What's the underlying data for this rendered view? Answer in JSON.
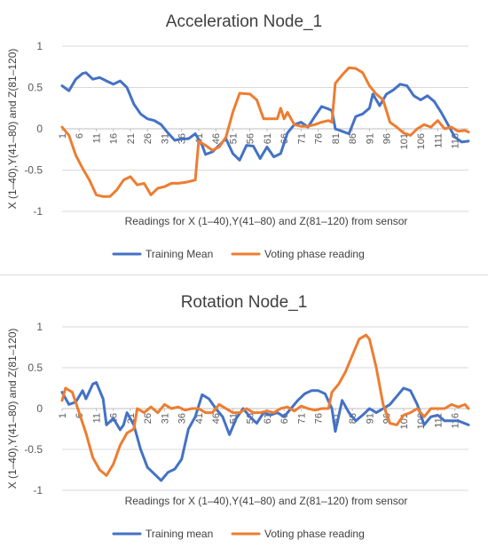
{
  "chart_data": [
    {
      "type": "line",
      "title": "Acceleration Node_1",
      "xlabel": "Readings for X (1–40),Y(41–80) and Z(81–120) from sensor",
      "ylabel": "X (1–40),Y(41–80) and Z(81–120)",
      "ylim": [
        -1,
        1
      ],
      "yticks": [
        1,
        0.5,
        0,
        -0.5,
        -1
      ],
      "xlim": [
        1,
        120
      ],
      "xticks": [
        1,
        6,
        11,
        16,
        21,
        26,
        31,
        36,
        41,
        46,
        51,
        56,
        61,
        66,
        71,
        76,
        81,
        86,
        91,
        96,
        101,
        106,
        111,
        116
      ],
      "grid": true,
      "legend": "bottom",
      "series": [
        {
          "name": "Training Mean",
          "color": "#4472C4",
          "points": [
            [
              1,
              0.52
            ],
            [
              3,
              0.46
            ],
            [
              5,
              0.6
            ],
            [
              7,
              0.67
            ],
            [
              8,
              0.68
            ],
            [
              10,
              0.6
            ],
            [
              12,
              0.62
            ],
            [
              14,
              0.58
            ],
            [
              16,
              0.54
            ],
            [
              18,
              0.58
            ],
            [
              20,
              0.5
            ],
            [
              22,
              0.3
            ],
            [
              24,
              0.18
            ],
            [
              26,
              0.12
            ],
            [
              28,
              0.1
            ],
            [
              30,
              0.05
            ],
            [
              32,
              -0.05
            ],
            [
              34,
              -0.14
            ],
            [
              36,
              -0.12
            ],
            [
              38,
              -0.12
            ],
            [
              40,
              -0.06
            ],
            [
              42,
              -0.2
            ],
            [
              43,
              -0.31
            ],
            [
              45,
              -0.28
            ],
            [
              47,
              -0.2
            ],
            [
              49,
              -0.12
            ],
            [
              51,
              -0.3
            ],
            [
              53,
              -0.38
            ],
            [
              55,
              -0.2
            ],
            [
              57,
              -0.21
            ],
            [
              59,
              -0.36
            ],
            [
              61,
              -0.22
            ],
            [
              63,
              -0.34
            ],
            [
              65,
              -0.3
            ],
            [
              67,
              -0.05
            ],
            [
              69,
              0.05
            ],
            [
              71,
              0.08
            ],
            [
              73,
              0.02
            ],
            [
              75,
              0.15
            ],
            [
              77,
              0.27
            ],
            [
              79,
              0.24
            ],
            [
              80,
              0.22
            ],
            [
              81,
              0.0
            ],
            [
              83,
              -0.03
            ],
            [
              85,
              -0.06
            ],
            [
              87,
              0.15
            ],
            [
              89,
              0.18
            ],
            [
              91,
              0.25
            ],
            [
              92,
              0.42
            ],
            [
              94,
              0.28
            ],
            [
              96,
              0.42
            ],
            [
              98,
              0.47
            ],
            [
              100,
              0.54
            ],
            [
              102,
              0.52
            ],
            [
              104,
              0.4
            ],
            [
              106,
              0.35
            ],
            [
              108,
              0.4
            ],
            [
              110,
              0.33
            ],
            [
              112,
              0.2
            ],
            [
              114,
              0.05
            ],
            [
              116,
              -0.1
            ],
            [
              118,
              -0.16
            ],
            [
              120,
              -0.15
            ]
          ]
        },
        {
          "name": "Voting phase reading",
          "color": "#ED7D31",
          "points": [
            [
              1,
              0.02
            ],
            [
              3,
              -0.08
            ],
            [
              5,
              -0.32
            ],
            [
              7,
              -0.48
            ],
            [
              9,
              -0.62
            ],
            [
              11,
              -0.8
            ],
            [
              13,
              -0.82
            ],
            [
              15,
              -0.82
            ],
            [
              17,
              -0.74
            ],
            [
              19,
              -0.62
            ],
            [
              21,
              -0.58
            ],
            [
              23,
              -0.68
            ],
            [
              25,
              -0.66
            ],
            [
              27,
              -0.8
            ],
            [
              29,
              -0.72
            ],
            [
              31,
              -0.7
            ],
            [
              33,
              -0.66
            ],
            [
              35,
              -0.66
            ],
            [
              37,
              -0.65
            ],
            [
              40,
              -0.62
            ],
            [
              41,
              -0.15
            ],
            [
              43,
              -0.2
            ],
            [
              45,
              -0.26
            ],
            [
              47,
              -0.22
            ],
            [
              49,
              -0.1
            ],
            [
              51,
              0.2
            ],
            [
              53,
              0.43
            ],
            [
              56,
              0.42
            ],
            [
              58,
              0.35
            ],
            [
              60,
              0.12
            ],
            [
              62,
              0.12
            ],
            [
              64,
              0.12
            ],
            [
              65,
              0.25
            ],
            [
              66,
              0.12
            ],
            [
              67,
              0.2
            ],
            [
              69,
              0.05
            ],
            [
              71,
              0.03
            ],
            [
              73,
              0.03
            ],
            [
              75,
              0.05
            ],
            [
              77,
              0.08
            ],
            [
              79,
              0.1
            ],
            [
              80,
              0.08
            ],
            [
              81,
              0.55
            ],
            [
              83,
              0.65
            ],
            [
              85,
              0.74
            ],
            [
              87,
              0.73
            ],
            [
              89,
              0.68
            ],
            [
              91,
              0.52
            ],
            [
              93,
              0.42
            ],
            [
              95,
              0.35
            ],
            [
              97,
              0.08
            ],
            [
              99,
              0.02
            ],
            [
              101,
              -0.05
            ],
            [
              103,
              -0.08
            ],
            [
              105,
              0.0
            ],
            [
              107,
              0.05
            ],
            [
              109,
              0.02
            ],
            [
              111,
              0.1
            ],
            [
              113,
              0.0
            ],
            [
              115,
              0.02
            ],
            [
              117,
              -0.03
            ],
            [
              119,
              -0.02
            ],
            [
              120,
              -0.04
            ]
          ]
        }
      ]
    },
    {
      "type": "line",
      "title": "Rotation Node_1",
      "xlabel": "Readings for X (1–40),Y(41–80) and Z(81–120) from sensor",
      "ylabel": "X (1–40),Y(41–80) and Z(81–120)",
      "ylim": [
        -1,
        1
      ],
      "yticks": [
        1,
        0.5,
        0,
        -0.5,
        -1
      ],
      "xlim": [
        1,
        120
      ],
      "xticks": [
        1,
        6,
        11,
        16,
        21,
        26,
        31,
        36,
        41,
        46,
        51,
        56,
        61,
        66,
        71,
        76,
        81,
        86,
        91,
        96,
        101,
        106,
        111,
        116
      ],
      "grid": true,
      "legend": "bottom",
      "series": [
        {
          "name": "Training mean",
          "color": "#4472C4",
          "points": [
            [
              1,
              0.2
            ],
            [
              3,
              0.05
            ],
            [
              5,
              0.08
            ],
            [
              7,
              0.22
            ],
            [
              8,
              0.12
            ],
            [
              10,
              0.3
            ],
            [
              11,
              0.32
            ],
            [
              13,
              0.12
            ],
            [
              14,
              -0.2
            ],
            [
              16,
              -0.12
            ],
            [
              18,
              -0.26
            ],
            [
              19,
              -0.2
            ],
            [
              20,
              -0.05
            ],
            [
              22,
              -0.2
            ],
            [
              24,
              -0.5
            ],
            [
              26,
              -0.72
            ],
            [
              28,
              -0.8
            ],
            [
              30,
              -0.88
            ],
            [
              32,
              -0.78
            ],
            [
              34,
              -0.74
            ],
            [
              36,
              -0.62
            ],
            [
              38,
              -0.25
            ],
            [
              40,
              -0.1
            ],
            [
              42,
              0.17
            ],
            [
              44,
              0.12
            ],
            [
              46,
              0.0
            ],
            [
              48,
              -0.1
            ],
            [
              50,
              -0.32
            ],
            [
              52,
              -0.12
            ],
            [
              54,
              0.0
            ],
            [
              56,
              -0.1
            ],
            [
              58,
              -0.18
            ],
            [
              60,
              -0.05
            ],
            [
              62,
              -0.08
            ],
            [
              64,
              -0.05
            ],
            [
              66,
              -0.1
            ],
            [
              68,
              0.0
            ],
            [
              70,
              0.1
            ],
            [
              72,
              0.18
            ],
            [
              74,
              0.22
            ],
            [
              76,
              0.22
            ],
            [
              78,
              0.18
            ],
            [
              80,
              0.0
            ],
            [
              81,
              -0.28
            ],
            [
              83,
              0.1
            ],
            [
              85,
              -0.05
            ],
            [
              87,
              -0.15
            ],
            [
              89,
              -0.08
            ],
            [
              91,
              0.0
            ],
            [
              93,
              -0.05
            ],
            [
              95,
              0.0
            ],
            [
              97,
              0.05
            ],
            [
              99,
              0.15
            ],
            [
              101,
              0.25
            ],
            [
              103,
              0.22
            ],
            [
              105,
              0.05
            ],
            [
              107,
              -0.2
            ],
            [
              109,
              -0.1
            ],
            [
              111,
              -0.08
            ],
            [
              113,
              -0.15
            ],
            [
              115,
              -0.15
            ],
            [
              117,
              -0.15
            ],
            [
              120,
              -0.2
            ]
          ]
        },
        {
          "name": "Voting phase reading",
          "color": "#ED7D31",
          "points": [
            [
              1,
              0.1
            ],
            [
              2,
              0.25
            ],
            [
              4,
              0.2
            ],
            [
              6,
              -0.05
            ],
            [
              8,
              -0.3
            ],
            [
              10,
              -0.6
            ],
            [
              12,
              -0.75
            ],
            [
              14,
              -0.82
            ],
            [
              16,
              -0.68
            ],
            [
              18,
              -0.45
            ],
            [
              20,
              -0.3
            ],
            [
              22,
              -0.25
            ],
            [
              23,
              0.0
            ],
            [
              25,
              -0.05
            ],
            [
              27,
              0.02
            ],
            [
              29,
              -0.05
            ],
            [
              31,
              0.05
            ],
            [
              33,
              0.0
            ],
            [
              35,
              0.02
            ],
            [
              37,
              -0.02
            ],
            [
              39,
              0.0
            ],
            [
              41,
              0.0
            ],
            [
              43,
              -0.05
            ],
            [
              45,
              -0.05
            ],
            [
              47,
              0.05
            ],
            [
              49,
              0.0
            ],
            [
              51,
              -0.05
            ],
            [
              53,
              -0.05
            ],
            [
              55,
              0.0
            ],
            [
              57,
              -0.05
            ],
            [
              59,
              -0.05
            ],
            [
              61,
              -0.03
            ],
            [
              63,
              -0.05
            ],
            [
              65,
              0.0
            ],
            [
              67,
              0.02
            ],
            [
              69,
              -0.03
            ],
            [
              71,
              0.03
            ],
            [
              73,
              0.0
            ],
            [
              75,
              -0.02
            ],
            [
              77,
              0.0
            ],
            [
              79,
              0.0
            ],
            [
              80,
              0.2
            ],
            [
              82,
              0.3
            ],
            [
              84,
              0.45
            ],
            [
              86,
              0.65
            ],
            [
              88,
              0.85
            ],
            [
              90,
              0.9
            ],
            [
              91,
              0.85
            ],
            [
              93,
              0.5
            ],
            [
              95,
              0.05
            ],
            [
              97,
              -0.18
            ],
            [
              99,
              -0.2
            ],
            [
              101,
              -0.08
            ],
            [
              103,
              -0.05
            ],
            [
              105,
              0.0
            ],
            [
              107,
              -0.1
            ],
            [
              109,
              0.0
            ],
            [
              111,
              0.0
            ],
            [
              113,
              0.0
            ],
            [
              115,
              0.05
            ],
            [
              117,
              0.02
            ],
            [
              119,
              0.05
            ],
            [
              120,
              0.0
            ]
          ]
        }
      ]
    }
  ]
}
